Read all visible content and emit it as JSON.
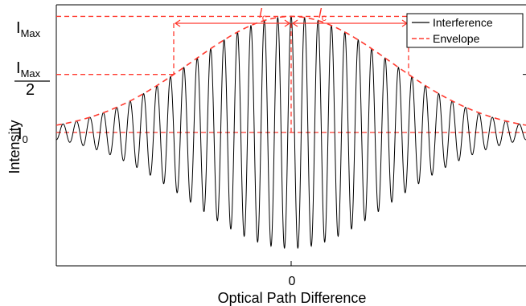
{
  "chart_data": {
    "type": "line",
    "xlabel": "Optical Path Difference",
    "ylabel": "Intensity",
    "xlim": [
      -1,
      1
    ],
    "ylim": [
      -1.15,
      1.1
    ],
    "x_ticks": [
      {
        "value": 0,
        "label": "0"
      }
    ],
    "y_levels": {
      "i_max": {
        "value": 1.0,
        "label": "I",
        "subscript": "Max"
      },
      "half": {
        "value": 0.5,
        "numerator": "I",
        "numerator_sub": "Max",
        "denominator": "2"
      },
      "i0": {
        "value": 0.0,
        "label": "I",
        "subscript": "0"
      }
    },
    "coherence_length_label": {
      "main": "l",
      "subscript": "c"
    },
    "coherence_length_half_width": 0.5,
    "fringe_periods_per_unit_x": 17.5,
    "legend": {
      "position": "top-right",
      "entries": [
        "Interference",
        "Envelope"
      ]
    },
    "series": [
      {
        "name": "Interference",
        "color": "#000000",
        "style": "solid"
      },
      {
        "name": "Envelope",
        "color": "#ff3b30",
        "style": "dashed"
      }
    ],
    "grid": false
  }
}
